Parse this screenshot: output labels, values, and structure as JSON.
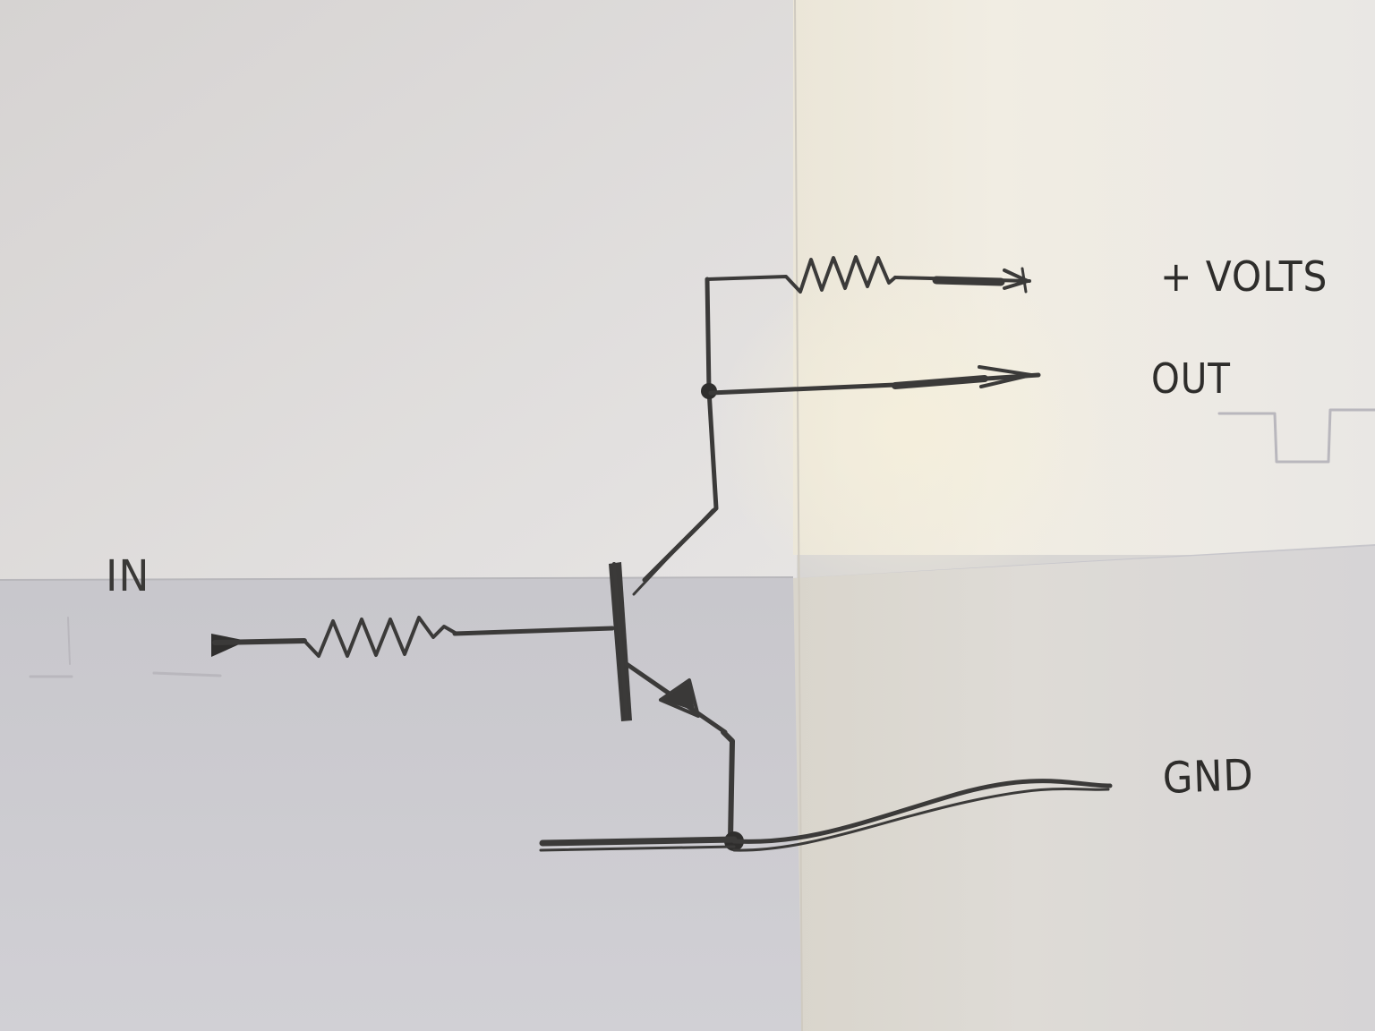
{
  "diagram": {
    "labels": {
      "supply": "+ VOLTS",
      "output": "OUT",
      "input": "IN",
      "ground": "GND"
    }
  }
}
